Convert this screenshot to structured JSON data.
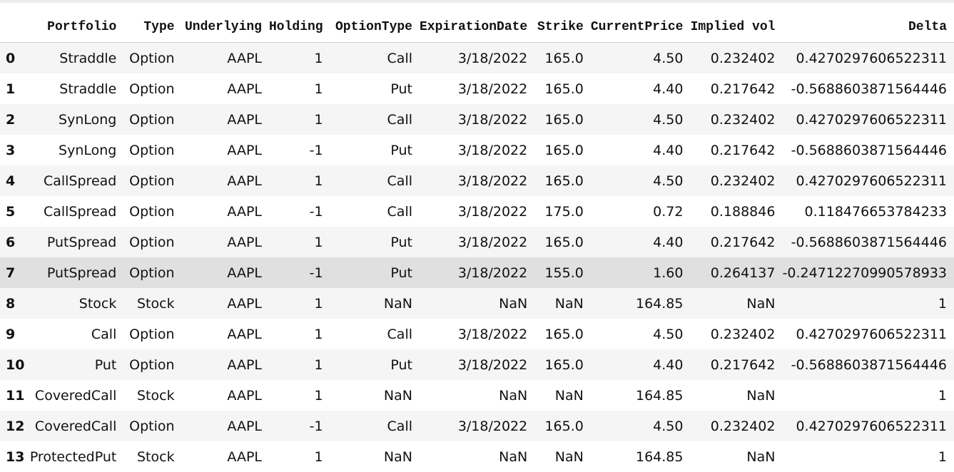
{
  "columns": [
    "Portfolio",
    "Type",
    "Underlying",
    "Holding",
    "OptionType",
    "ExpirationDate",
    "Strike",
    "CurrentPrice",
    "Implied vol",
    "Delta"
  ],
  "rows": [
    {
      "index": "0",
      "cells": [
        "Straddle",
        "Option",
        "AAPL",
        "1",
        "Call",
        "3/18/2022",
        "165.0",
        "4.50",
        "0.232402",
        "0.4270297606522311"
      ]
    },
    {
      "index": "1",
      "cells": [
        "Straddle",
        "Option",
        "AAPL",
        "1",
        "Put",
        "3/18/2022",
        "165.0",
        "4.40",
        "0.217642",
        "-0.5688603871564446"
      ]
    },
    {
      "index": "2",
      "cells": [
        "SynLong",
        "Option",
        "AAPL",
        "1",
        "Call",
        "3/18/2022",
        "165.0",
        "4.50",
        "0.232402",
        "0.4270297606522311"
      ]
    },
    {
      "index": "3",
      "cells": [
        "SynLong",
        "Option",
        "AAPL",
        "-1",
        "Put",
        "3/18/2022",
        "165.0",
        "4.40",
        "0.217642",
        "-0.5688603871564446"
      ]
    },
    {
      "index": "4",
      "cells": [
        "CallSpread",
        "Option",
        "AAPL",
        "1",
        "Call",
        "3/18/2022",
        "165.0",
        "4.50",
        "0.232402",
        "0.4270297606522311"
      ]
    },
    {
      "index": "5",
      "cells": [
        "CallSpread",
        "Option",
        "AAPL",
        "-1",
        "Call",
        "3/18/2022",
        "175.0",
        "0.72",
        "0.188846",
        "0.118476653784233"
      ]
    },
    {
      "index": "6",
      "cells": [
        "PutSpread",
        "Option",
        "AAPL",
        "1",
        "Put",
        "3/18/2022",
        "165.0",
        "4.40",
        "0.217642",
        "-0.5688603871564446"
      ]
    },
    {
      "index": "7",
      "cells": [
        "PutSpread",
        "Option",
        "AAPL",
        "-1",
        "Put",
        "3/18/2022",
        "155.0",
        "1.60",
        "0.264137",
        "-0.24712270990578933"
      ]
    },
    {
      "index": "8",
      "cells": [
        "Stock",
        "Stock",
        "AAPL",
        "1",
        "NaN",
        "NaN",
        "NaN",
        "164.85",
        "NaN",
        "1"
      ]
    },
    {
      "index": "9",
      "cells": [
        "Call",
        "Option",
        "AAPL",
        "1",
        "Call",
        "3/18/2022",
        "165.0",
        "4.50",
        "0.232402",
        "0.4270297606522311"
      ]
    },
    {
      "index": "10",
      "cells": [
        "Put",
        "Option",
        "AAPL",
        "1",
        "Put",
        "3/18/2022",
        "165.0",
        "4.40",
        "0.217642",
        "-0.5688603871564446"
      ]
    },
    {
      "index": "11",
      "cells": [
        "CoveredCall",
        "Stock",
        "AAPL",
        "1",
        "NaN",
        "NaN",
        "NaN",
        "164.85",
        "NaN",
        "1"
      ]
    },
    {
      "index": "12",
      "cells": [
        "CoveredCall",
        "Option",
        "AAPL",
        "-1",
        "Call",
        "3/18/2022",
        "165.0",
        "4.50",
        "0.232402",
        "0.4270297606522311"
      ]
    },
    {
      "index": "13",
      "cells": [
        "ProtectedPut",
        "Stock",
        "AAPL",
        "1",
        "NaN",
        "NaN",
        "NaN",
        "164.85",
        "NaN",
        "1"
      ]
    }
  ],
  "highlighted_row": 7,
  "colors": {
    "row_striped": "#f5f5f5",
    "row_plain": "#ffffff",
    "row_hover": "#e0e0e0",
    "header_border": "#d4d4d4"
  }
}
